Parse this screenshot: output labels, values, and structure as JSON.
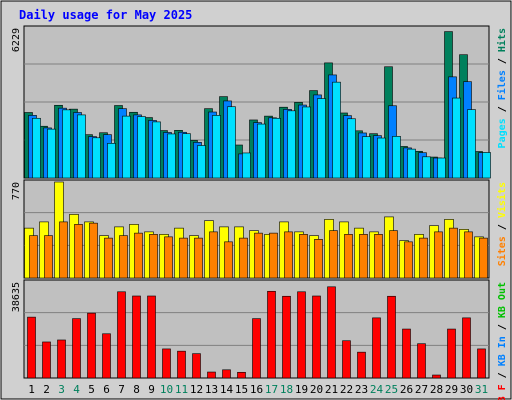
{
  "chart_data": {
    "type": "bar",
    "title": "Daily usage for May 2025",
    "colors": {
      "hits": "#00805C",
      "files": "#0080FF",
      "pages": "#00E0FF",
      "visits": "#FFFF00",
      "sites": "#FF8000",
      "kbin": "#0000FF",
      "kbout": "#00C000",
      "kbf": "#FF0000",
      "weekend_day_label": "#00805C",
      "weekday_day_label": "#000000",
      "panel_background": "#C0C0C0",
      "frame_background": "#D0D0D0",
      "title_color": "#0000FF"
    },
    "categories": [
      "1",
      "2",
      "3",
      "4",
      "5",
      "6",
      "7",
      "8",
      "9",
      "10",
      "11",
      "12",
      "13",
      "14",
      "15",
      "16",
      "17",
      "18",
      "19",
      "20",
      "21",
      "22",
      "23",
      "24",
      "25",
      "26",
      "27",
      "28",
      "29",
      "30",
      "31"
    ],
    "weekend_days": [
      "3",
      "4",
      "10",
      "11",
      "17",
      "18",
      "24",
      "25",
      "31"
    ],
    "panels": [
      {
        "id": "hits-files-pages",
        "max_label": "6229",
        "legend": [
          {
            "text": "Pages",
            "color": "#00E0FF"
          },
          {
            "text": " / ",
            "color": "#000000"
          },
          {
            "text": "Files",
            "color": "#0080FF"
          },
          {
            "text": " / ",
            "color": "#000000"
          },
          {
            "text": "Hits",
            "color": "#00805C"
          }
        ],
        "ylim": [
          0,
          6229
        ],
        "series": [
          {
            "name": "Hits",
            "color": "#00805C",
            "values": [
              2720,
              2150,
              3020,
              2860,
              1800,
              1880,
              3010,
              2730,
              2510,
              1970,
              1980,
              1560,
              2880,
              3380,
              1370,
              2410,
              2570,
              2940,
              3140,
              3630,
              4780,
              2700,
              1960,
              1840,
              4620,
              1310,
              1110,
              870,
              6080,
              5120,
              1100
            ]
          },
          {
            "name": "Files",
            "color": "#0080FF",
            "values": [
              2600,
              2080,
              2900,
              2720,
              1720,
              1800,
              2880,
              2620,
              2390,
              1890,
              1900,
              1480,
              2740,
              3200,
              1000,
              2300,
              2500,
              2850,
              3030,
              3450,
              4280,
              2590,
              1870,
              1760,
              3000,
              1250,
              1050,
              830,
              4200,
              4000,
              1050
            ]
          },
          {
            "name": "Pages",
            "color": "#00E0FF",
            "values": [
              2480,
              2030,
              2830,
              2620,
              1670,
              1440,
              2570,
              2550,
              2330,
              1830,
              1840,
              1350,
              2600,
              2960,
              1040,
              2240,
              2480,
              2790,
              2950,
              3300,
              3980,
              2460,
              1720,
              1660,
              1730,
              1200,
              880,
              830,
              3320,
              2840,
              1060
            ]
          }
        ]
      },
      {
        "id": "visits-sites",
        "max_label": "770",
        "legend": [
          {
            "text": "Sites",
            "color": "#FF8000"
          },
          {
            "text": " / ",
            "color": "#000000"
          },
          {
            "text": "Visits",
            "color": "#FFFF00"
          }
        ],
        "ylim": [
          0,
          770
        ],
        "series": [
          {
            "name": "Visits",
            "color": "#FFFF00",
            "values": [
              400,
              450,
              770,
              510,
              450,
              340,
              410,
              430,
              370,
              350,
              400,
              340,
              460,
              410,
              410,
              380,
              350,
              450,
              370,
              340,
              470,
              450,
              400,
              370,
              490,
              300,
              350,
              420,
              470,
              390,
              330
            ]
          },
          {
            "name": "Sites",
            "color": "#FF8000",
            "values": [
              340,
              340,
              450,
              430,
              440,
              320,
              340,
              360,
              350,
              330,
              320,
              320,
              370,
              290,
              320,
              360,
              360,
              370,
              350,
              310,
              380,
              350,
              350,
              350,
              380,
              290,
              320,
              370,
              400,
              370,
              320
            ]
          }
        ]
      },
      {
        "id": "kbytes",
        "max_label": "38635",
        "legend": [
          {
            "text": "KB F",
            "color": "#FF0000"
          },
          {
            "text": " / ",
            "color": "#000000"
          },
          {
            "text": "KB In",
            "color": "#0080FF"
          },
          {
            "text": " / ",
            "color": "#000000"
          },
          {
            "text": "KB Out",
            "color": "#00C000"
          }
        ],
        "ylim": [
          0,
          38635
        ],
        "series": [
          {
            "name": "KB F",
            "color": "#FF0000",
            "values": [
              24500,
              14500,
              15300,
              23900,
              26100,
              17800,
              34700,
              33000,
              33000,
              11700,
              10800,
              9800,
              2400,
              3300,
              2300,
              23900,
              34900,
              32900,
              34700,
              33000,
              36700,
              15000,
              10400,
              24200,
              32900,
              19700,
              13800,
              1200,
              19700,
              24200,
              11700
            ]
          }
        ]
      }
    ]
  }
}
